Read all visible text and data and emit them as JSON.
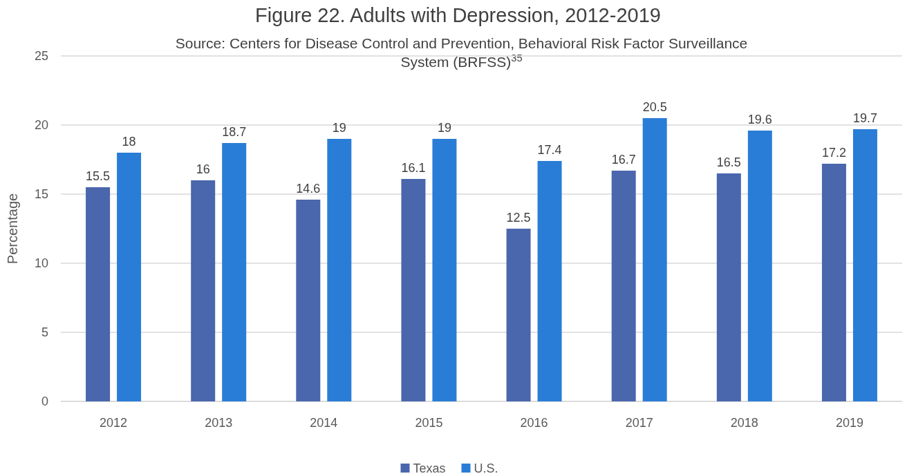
{
  "chart_data": {
    "type": "bar",
    "title": "Figure 22. Adults with Depression, 2012-2019",
    "subtitle": "Source: Centers for Disease Control and Prevention, Behavioral Risk Factor Surveillance System (BRFSS)$^{35}$",
    "ylabel": "Percentage",
    "categories": [
      "2012",
      "2013",
      "2014",
      "2015",
      "2016",
      "2017",
      "2018",
      "2019"
    ],
    "series": [
      {
        "name": "Texas",
        "color": "#4a66ad",
        "values": [
          15.5,
          16,
          14.6,
          16.1,
          12.5,
          16.7,
          16.5,
          17.2
        ]
      },
      {
        "name": "U.S.",
        "color": "#2a7dd6",
        "values": [
          18,
          18.7,
          19,
          19,
          17.4,
          20.5,
          19.6,
          19.7
        ]
      }
    ],
    "ylim": [
      0,
      25
    ],
    "yticks": [
      0,
      5,
      10,
      15,
      20,
      25
    ],
    "grid": "y",
    "legend": "bottom",
    "data_labels": true
  }
}
